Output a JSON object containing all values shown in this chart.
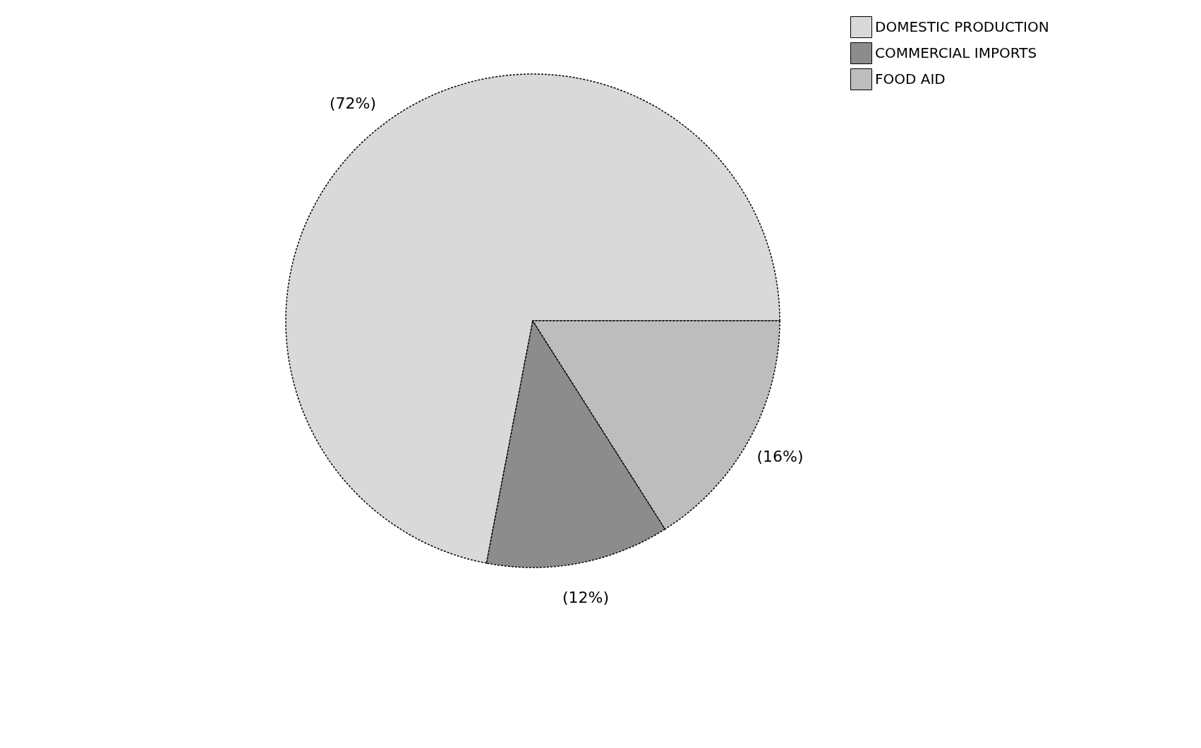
{
  "chart_data": {
    "type": "pie",
    "categories": [
      "DOMESTIC PRODUCTION",
      "COMMERCIAL IMPORTS",
      "FOOD AID"
    ],
    "values": [
      72,
      12,
      16
    ],
    "colors": [
      "#d9d9d9",
      "#8c8c8c",
      "#bdbdbd"
    ],
    "value_labels": [
      "(72%)",
      "(12%)",
      "(16%)"
    ],
    "legend": "top right"
  }
}
